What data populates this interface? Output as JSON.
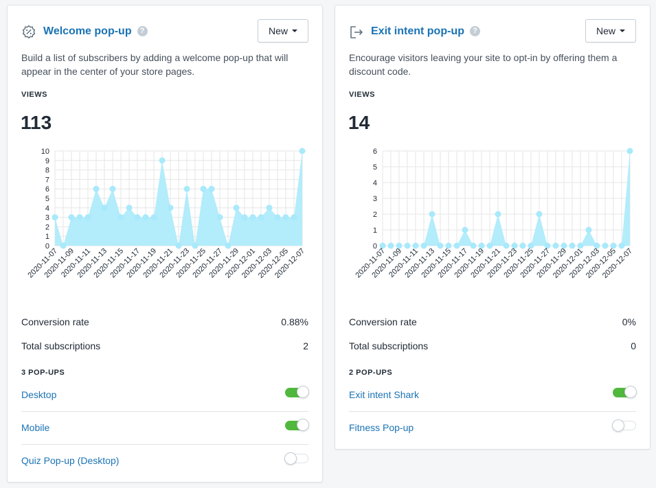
{
  "cards": [
    {
      "id": "welcome",
      "title": "Welcome pop-up",
      "icon": "percent-badge-icon",
      "help": "?",
      "new_button": "New",
      "description": "Build a list of subscribers by adding a welcome pop-up that will appear in the center of your store pages.",
      "views_label": "VIEWS",
      "views": "113",
      "conversion_label": "Conversion rate",
      "conversion_value": "0.88%",
      "subscriptions_label": "Total subscriptions",
      "subscriptions_value": "2",
      "popups_label": "3 POP-UPS",
      "popups": [
        {
          "name": "Desktop",
          "enabled": true
        },
        {
          "name": "Mobile",
          "enabled": true
        },
        {
          "name": "Quiz Pop-up (Desktop)",
          "enabled": false
        }
      ]
    },
    {
      "id": "exit",
      "title": "Exit intent pop-up",
      "icon": "exit-arrow-icon",
      "help": "?",
      "new_button": "New",
      "description": "Encourage visitors leaving your site to opt-in by offering them a discount code.",
      "views_label": "VIEWS",
      "views": "14",
      "conversion_label": "Conversion rate",
      "conversion_value": "0%",
      "subscriptions_label": "Total subscriptions",
      "subscriptions_value": "0",
      "popups_label": "2 POP-UPS",
      "popups": [
        {
          "name": "Exit intent Shark",
          "enabled": true
        },
        {
          "name": "Fitness Pop-up",
          "enabled": false
        }
      ]
    }
  ],
  "colors": {
    "accent": "#1a73b5",
    "chart_fill": "#b3ecfb",
    "chart_point": "#a8e9fb",
    "toggle_on": "#50b83c",
    "grid": "#e6e6e6"
  },
  "chart_data": [
    {
      "type": "area",
      "title": "",
      "xlabel": "",
      "ylabel": "",
      "x_tick_labels": [
        "2020-11-07",
        "2020-11-09",
        "2020-11-11",
        "2020-11-13",
        "2020-11-15",
        "2020-11-17",
        "2020-11-19",
        "2020-11-21",
        "2020-11-23",
        "2020-11-25",
        "2020-11-27",
        "2020-11-29",
        "2020-12-01",
        "2020-12-03",
        "2020-12-05",
        "2020-12-07"
      ],
      "y_ticks": [
        0,
        1,
        2,
        3,
        4,
        5,
        6,
        7,
        8,
        9,
        10
      ],
      "ylim": [
        0,
        10
      ],
      "grid": true,
      "x": [
        "2020-11-07",
        "2020-11-08",
        "2020-11-09",
        "2020-11-10",
        "2020-11-11",
        "2020-11-12",
        "2020-11-13",
        "2020-11-14",
        "2020-11-15",
        "2020-11-16",
        "2020-11-17",
        "2020-11-18",
        "2020-11-19",
        "2020-11-20",
        "2020-11-21",
        "2020-11-22",
        "2020-11-23",
        "2020-11-24",
        "2020-11-25",
        "2020-11-26",
        "2020-11-27",
        "2020-11-28",
        "2020-11-29",
        "2020-11-30",
        "2020-12-01",
        "2020-12-02",
        "2020-12-03",
        "2020-12-04",
        "2020-12-05",
        "2020-12-06",
        "2020-12-07"
      ],
      "values": [
        3,
        0,
        3,
        3,
        3,
        6,
        4,
        6,
        3,
        4,
        3,
        3,
        3,
        9,
        4,
        0,
        6,
        0,
        6,
        6,
        3,
        0,
        4,
        3,
        3,
        3,
        4,
        3,
        3,
        3,
        10
      ]
    },
    {
      "type": "area",
      "title": "",
      "xlabel": "",
      "ylabel": "",
      "x_tick_labels": [
        "2020-11-07",
        "2020-11-09",
        "2020-11-11",
        "2020-11-13",
        "2020-11-15",
        "2020-11-17",
        "2020-11-19",
        "2020-11-21",
        "2020-11-23",
        "2020-11-25",
        "2020-11-27",
        "2020-11-29",
        "2020-12-01",
        "2020-12-03",
        "2020-12-05",
        "2020-12-07"
      ],
      "y_ticks": [
        0,
        1,
        2,
        3,
        4,
        5,
        6
      ],
      "ylim": [
        0,
        6
      ],
      "grid": true,
      "x": [
        "2020-11-07",
        "2020-11-08",
        "2020-11-09",
        "2020-11-10",
        "2020-11-11",
        "2020-11-12",
        "2020-11-13",
        "2020-11-14",
        "2020-11-15",
        "2020-11-16",
        "2020-11-17",
        "2020-11-18",
        "2020-11-19",
        "2020-11-20",
        "2020-11-21",
        "2020-11-22",
        "2020-11-23",
        "2020-11-24",
        "2020-11-25",
        "2020-11-26",
        "2020-11-27",
        "2020-11-28",
        "2020-11-29",
        "2020-11-30",
        "2020-12-01",
        "2020-12-02",
        "2020-12-03",
        "2020-12-04",
        "2020-12-05",
        "2020-12-06",
        "2020-12-07"
      ],
      "values": [
        0,
        0,
        0,
        0,
        0,
        0,
        2,
        0,
        0,
        0,
        1,
        0,
        0,
        0,
        2,
        0,
        0,
        0,
        0,
        2,
        0,
        0,
        0,
        0,
        0,
        1,
        0,
        0,
        0,
        0,
        6
      ]
    }
  ]
}
